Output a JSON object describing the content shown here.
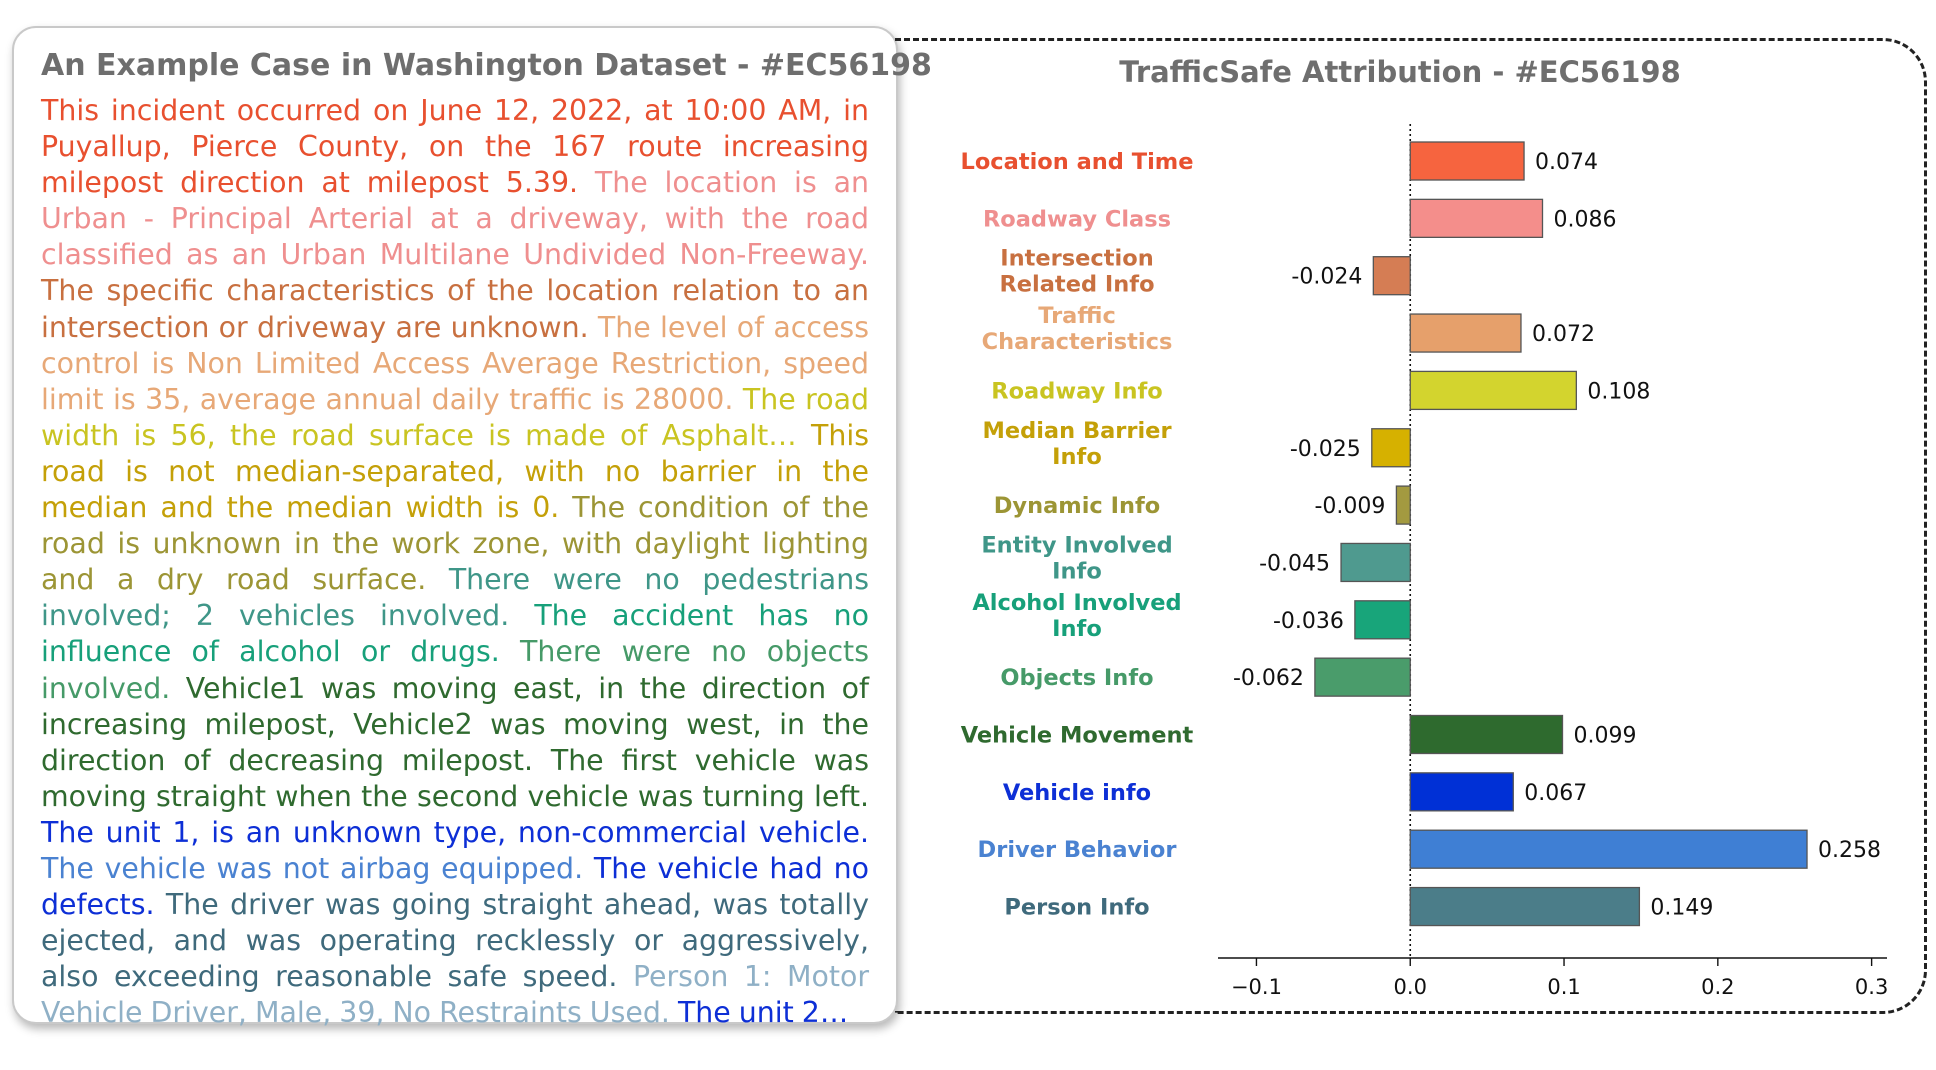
{
  "left_panel": {
    "title": "An Example Case in Washington Dataset - #EC56198",
    "segments": [
      {
        "text": "This incident occurred on June 12, 2022, at 10:00 AM, in Puyallup, Pierce County, on the 167 route increasing milepost direction at milepost 5.39.",
        "color": "#e8502f"
      },
      {
        "text": "The location is an Urban - Principal Arterial at a driveway, with the road classified as an Urban Multilane Undivided Non-Freeway.",
        "color": "#ef8f8f"
      },
      {
        "text": "The specific characteristics of the location relation to an intersection or driveway are unknown.",
        "color": "#c87040"
      },
      {
        "text": "The level of access control is Non Limited Access Average Restriction, speed limit is 35, average annual daily traffic is 28000.",
        "color": "#e7a877"
      },
      {
        "text": "The road width is 56, the road surface is made of Asphalt…",
        "color": "#c9c421"
      },
      {
        "text": "This road is not median-separated, with no barrier in the median and the median width is 0.",
        "color": "#c4a008"
      },
      {
        "text": "The condition of the road is unknown in the work zone, with daylight lighting and a dry road surface.",
        "color": "#9c9535"
      },
      {
        "text": "There were no pedestrians involved; 2 vehicles involved.",
        "color": "#3f9688"
      },
      {
        "text": "The accident has no influence of alcohol or drugs.",
        "color": "#17a07a"
      },
      {
        "text": "There were no objects involved.",
        "color": "#469a68"
      },
      {
        "text": "Vehicle1 was moving east, in the direction of increasing milepost, Vehicle2 was moving west, in the direction of decreasing milepost. The first vehicle was moving straight when the second vehicle was turning left.",
        "color": "#2f6a2f"
      },
      {
        "text": "The unit 1, is an unknown type, non-commercial vehicle.",
        "color": "#0d2fd6"
      },
      {
        "text": "The vehicle was not airbag equipped.",
        "color": "#4a82d1"
      },
      {
        "text": "The vehicle had no defects.",
        "color": "#0d2fd6"
      },
      {
        "text": "The driver was going straight ahead, was totally ejected, and was operating recklessly or aggressively, also exceeding reasonable safe speed.",
        "color": "#3f6a7c"
      },
      {
        "text": "Person 1: Motor Vehicle Driver, Male, 39, No Restraints Used.",
        "color": "#8fb0c6"
      },
      {
        "text": "The unit 2…",
        "color": "#0d2fd6"
      }
    ]
  },
  "chart_data": {
    "type": "bar",
    "orientation": "horizontal",
    "title": "TrafficSafe Attribution - #EC56198",
    "categories": [
      "Location and Time",
      "Roadway Class",
      "Intersection Related Info",
      "Traffic Characteristics",
      "Roadway Info",
      "Median Barrier Info",
      "Dynamic Info",
      "Entity Involved Info",
      "Alcohol Involved Info",
      "Objects Info",
      "Vehicle Movement",
      "Vehicle info",
      "Driver Behavior",
      "Person Info"
    ],
    "category_lines": [
      [
        "Location and Time"
      ],
      [
        "Roadway Class"
      ],
      [
        "Intersection",
        "Related Info"
      ],
      [
        "Traffic",
        "Characteristics"
      ],
      [
        "Roadway Info"
      ],
      [
        "Median Barrier",
        "Info"
      ],
      [
        "Dynamic Info"
      ],
      [
        "Entity Involved",
        "Info"
      ],
      [
        "Alcohol Involved",
        "Info"
      ],
      [
        "Objects Info"
      ],
      [
        "Vehicle Movement"
      ],
      [
        "Vehicle info"
      ],
      [
        "Driver Behavior"
      ],
      [
        "Person Info"
      ]
    ],
    "values": [
      0.074,
      0.086,
      -0.024,
      0.072,
      0.108,
      -0.025,
      -0.009,
      -0.045,
      -0.036,
      -0.062,
      0.099,
      0.067,
      0.258,
      0.149
    ],
    "value_labels": [
      "0.074",
      "0.086",
      "-0.024",
      "0.072",
      "0.108",
      "-0.025",
      "-0.009",
      "-0.045",
      "-0.036",
      "-0.062",
      "0.099",
      "0.067",
      "0.258",
      "0.149"
    ],
    "colors": [
      "#f6643f",
      "#f48e8b",
      "#d57d54",
      "#e6a06b",
      "#d3d42e",
      "#d6b100",
      "#a39a40",
      "#4f9a8f",
      "#18a57a",
      "#4a9c6b",
      "#2e6a2e",
      "#0030d6",
      "#3f7fd4",
      "#4b7d89"
    ],
    "label_colors": [
      "#e8502f",
      "#ef8f8f",
      "#c87040",
      "#e7a877",
      "#c9c421",
      "#c4a008",
      "#9c9535",
      "#3f9688",
      "#17a07a",
      "#469a68",
      "#2f6a2f",
      "#0d2fd6",
      "#4a82d1",
      "#3f6a7c"
    ],
    "xlim": [
      -0.125,
      0.31
    ],
    "xticks": [
      -0.1,
      0.0,
      0.1,
      0.2,
      0.3
    ],
    "xtick_labels": [
      "−0.1",
      "0.0",
      "0.1",
      "0.2",
      "0.3"
    ],
    "xlabel": "",
    "ylabel": "",
    "grid": false,
    "zero_line": "dotted"
  }
}
